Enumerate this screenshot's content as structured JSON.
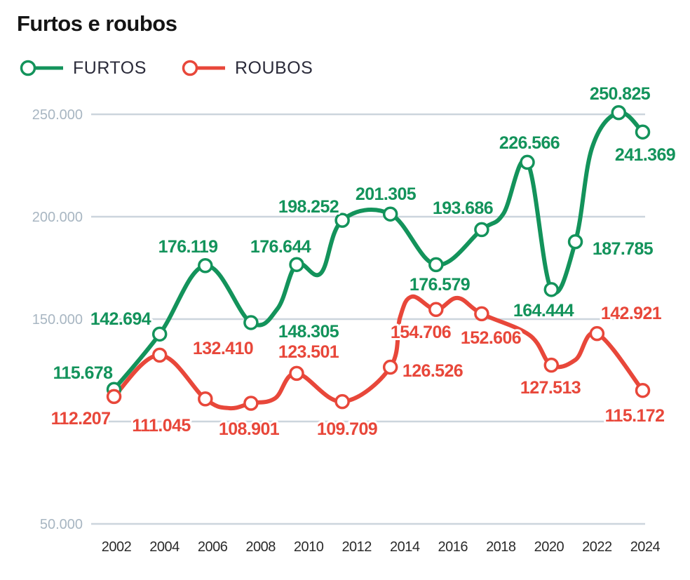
{
  "chart_data": {
    "type": "line",
    "title": "Furtos e roubos",
    "xlabel": "",
    "ylabel": "",
    "xlim": [
      2002,
      2024
    ],
    "ylim": [
      50000,
      250000
    ],
    "grid": true,
    "legend_position": "top-left",
    "x_ticks": [
      2002,
      2004,
      2006,
      2008,
      2010,
      2012,
      2014,
      2016,
      2018,
      2020,
      2022,
      2024
    ],
    "x_tick_labels": [
      "2002",
      "2004",
      "2006",
      "2008",
      "2010",
      "2012",
      "2014",
      "2016",
      "2018",
      "2020",
      "2022",
      "2024"
    ],
    "y_ticks": [
      250000,
      200000,
      150000,
      100000,
      50000
    ],
    "y_tick_labels": [
      "250.000",
      "200.000",
      "150.000",
      null,
      "50.000"
    ],
    "series": [
      {
        "name": "FURTOS",
        "color": "#13935b",
        "points": [
          {
            "x": 2001.9,
            "y": 115678,
            "label": "115.678"
          },
          {
            "x": 2003.8,
            "y": 142694,
            "label": "142.694"
          },
          {
            "x": 2005.7,
            "y": 176119,
            "label": "176.119"
          },
          {
            "x": 2007.6,
            "y": 148305,
            "label": "148.305"
          },
          {
            "x": 2008.7,
            "y": 155000,
            "label": null
          },
          {
            "x": 2009.5,
            "y": 176644,
            "label": "176.644"
          },
          {
            "x": 2010.5,
            "y": 172300,
            "label": null
          },
          {
            "x": 2011.4,
            "y": 198252,
            "label": "198.252"
          },
          {
            "x": 2013.4,
            "y": 201305,
            "label": "201.305"
          },
          {
            "x": 2015.3,
            "y": 176579,
            "label": "176.579"
          },
          {
            "x": 2017.2,
            "y": 193686,
            "label": "193.686"
          },
          {
            "x": 2018.1,
            "y": 201400,
            "label": null
          },
          {
            "x": 2019.1,
            "y": 226566,
            "label": "226.566"
          },
          {
            "x": 2020.1,
            "y": 164444,
            "label": "164.444"
          },
          {
            "x": 2021.1,
            "y": 187785,
            "label": "187.785"
          },
          {
            "x": 2021.8,
            "y": 233900,
            "label": null
          },
          {
            "x": 2022.9,
            "y": 250825,
            "label": "250.825"
          },
          {
            "x": 2023.9,
            "y": 241369,
            "label": "241.369"
          }
        ]
      },
      {
        "name": "ROUBOS",
        "color": "#e8473a",
        "points": [
          {
            "x": 2001.9,
            "y": 112207,
            "label": "112.207"
          },
          {
            "x": 2003.8,
            "y": 132410,
            "label": "132.410"
          },
          {
            "x": 2005.7,
            "y": 111045,
            "label": "111.045"
          },
          {
            "x": 2006.7,
            "y": 106500,
            "label": null
          },
          {
            "x": 2007.6,
            "y": 108901,
            "label": "108.901"
          },
          {
            "x": 2008.6,
            "y": 111300,
            "label": null
          },
          {
            "x": 2009.5,
            "y": 123501,
            "label": "123.501"
          },
          {
            "x": 2011.4,
            "y": 109709,
            "label": "109.709"
          },
          {
            "x": 2013.4,
            "y": 126526,
            "label": "126.526"
          },
          {
            "x": 2013.8,
            "y": 150700,
            "label": null
          },
          {
            "x": 2014.3,
            "y": 161000,
            "label": null
          },
          {
            "x": 2015.3,
            "y": 154706,
            "label": "154.706"
          },
          {
            "x": 2016.2,
            "y": 160300,
            "label": null
          },
          {
            "x": 2017.2,
            "y": 152606,
            "label": "152.606"
          },
          {
            "x": 2019.2,
            "y": 142100,
            "label": null
          },
          {
            "x": 2020.1,
            "y": 127513,
            "label": "127.513"
          },
          {
            "x": 2021.1,
            "y": 130100,
            "label": null
          },
          {
            "x": 2022.0,
            "y": 142921,
            "label": "142.921"
          },
          {
            "x": 2023.9,
            "y": 115172,
            "label": "115.172"
          }
        ]
      }
    ]
  }
}
